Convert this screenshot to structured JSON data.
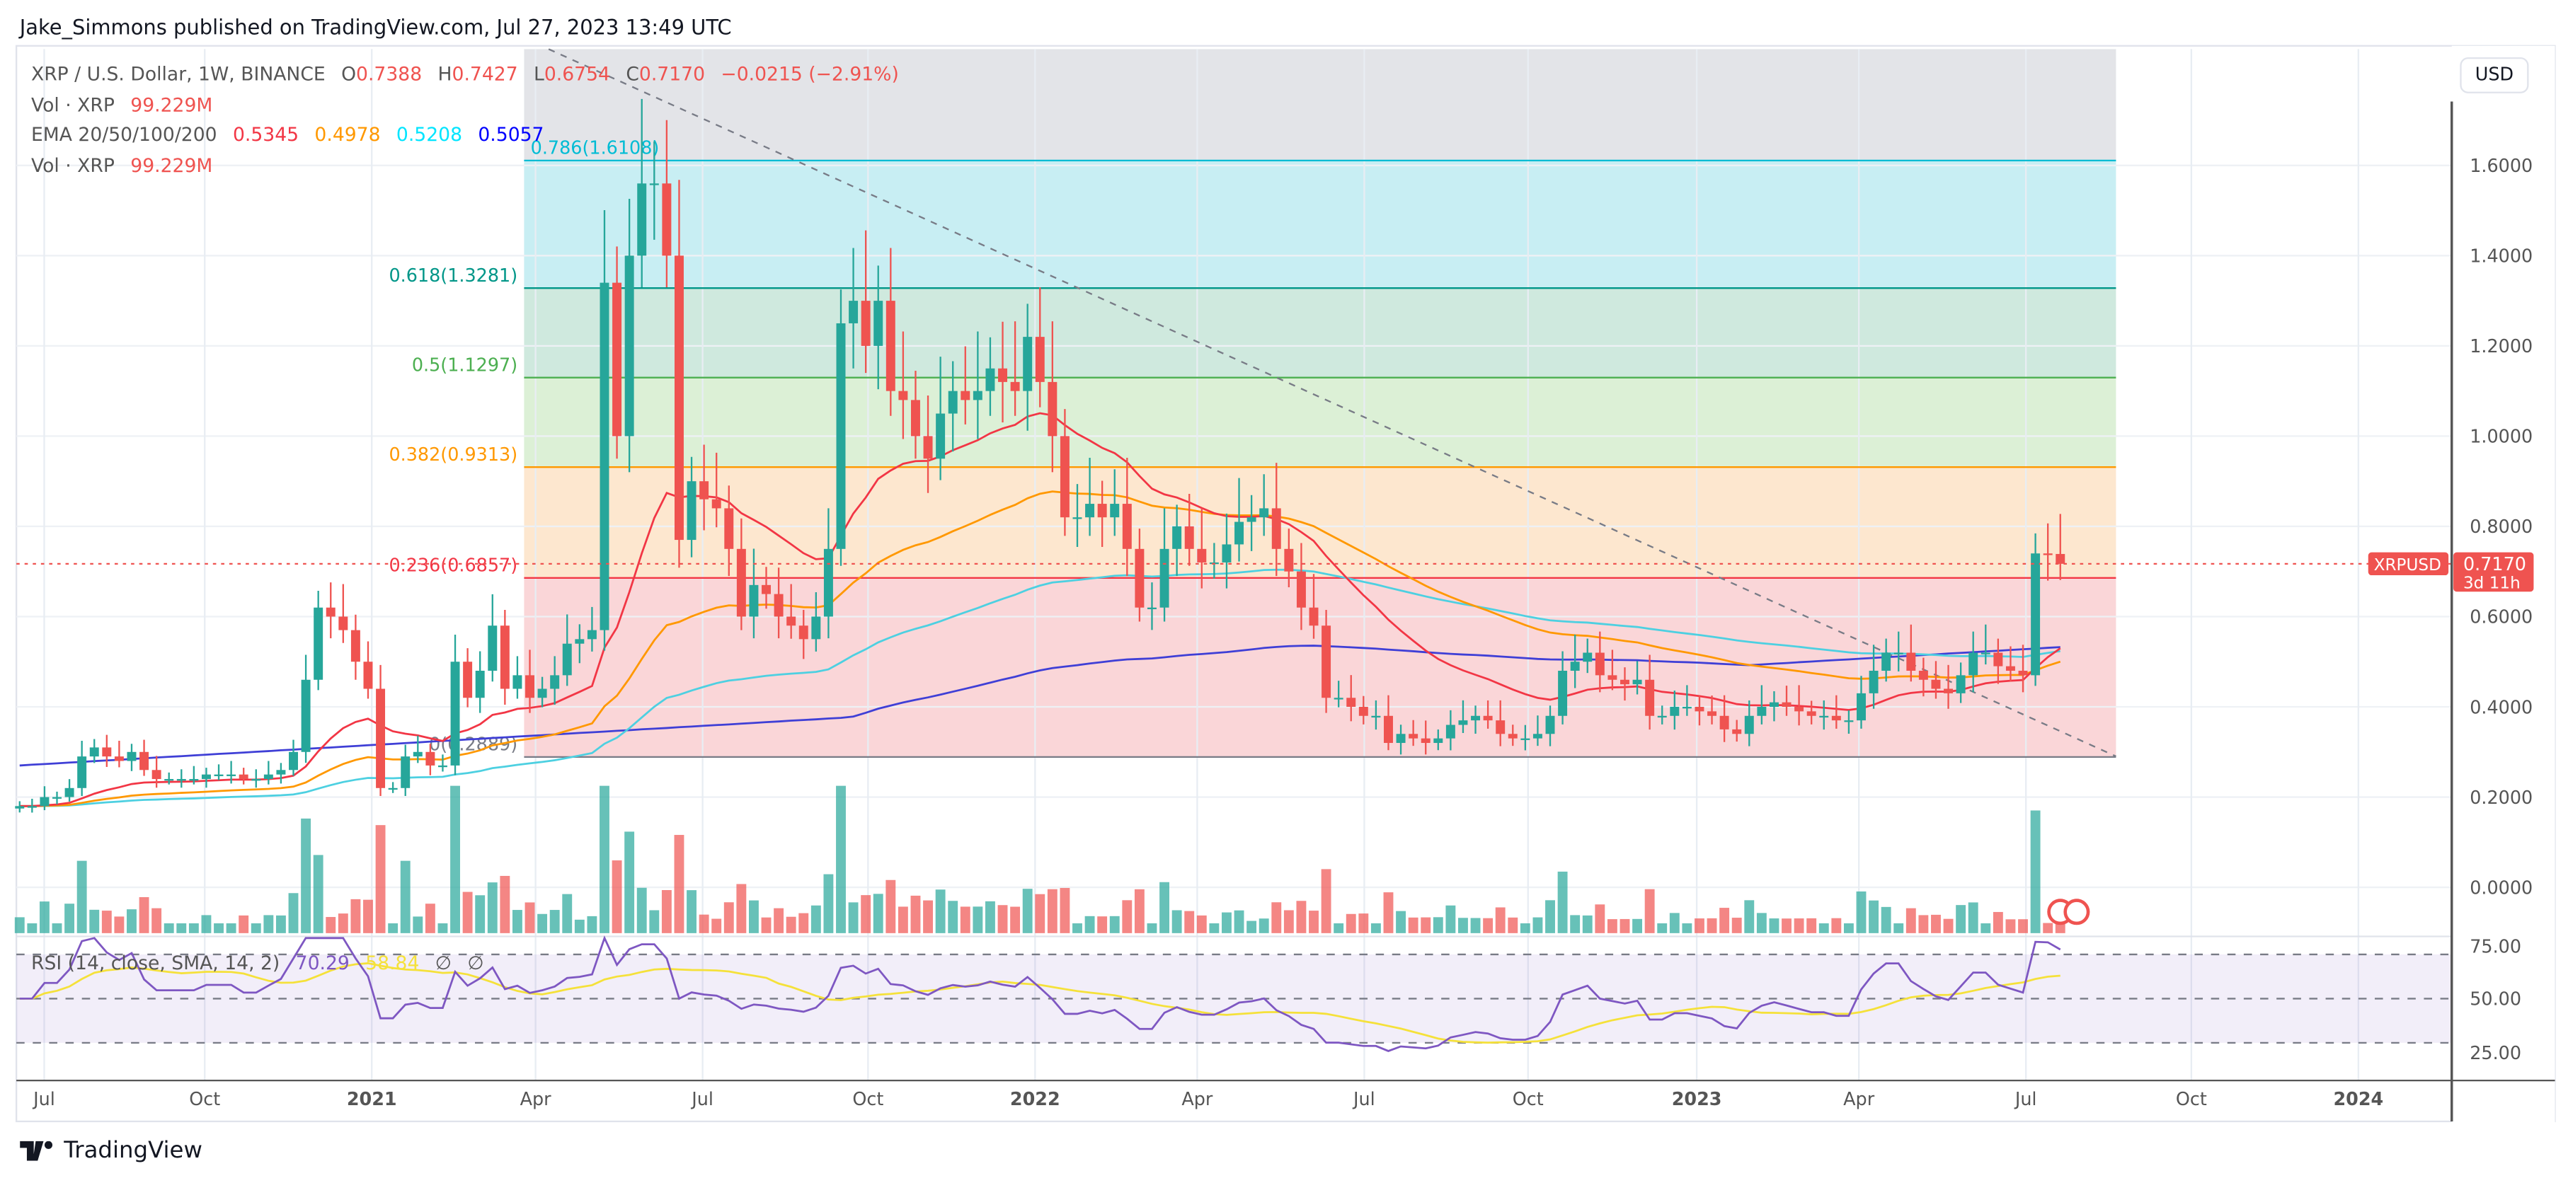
{
  "header": {
    "published": "Jake_Simmons published on TradingView.com, Jul 27, 2023 13:49 UTC"
  },
  "legend": {
    "symbol": "XRP / U.S. Dollar, 1W, BINANCE",
    "o_label": "O",
    "o": "0.7388",
    "h_label": "H",
    "h": "0.7427",
    "l_label": "L",
    "l": "0.6754",
    "c_label": "C",
    "c": "0.7170",
    "change": "−0.0215 (−2.91%)",
    "vol_label": "Vol · XRP",
    "vol": "99.229M",
    "ema_label": "EMA 20/50/100/200",
    "ema20": "0.5345",
    "ema50": "0.4978",
    "ema100": "0.5208",
    "ema200": "0.5057",
    "vol2_label": "Vol · XRP",
    "vol2": "99.229M",
    "rsi_label": "RSI (14, close, SMA, 14, 2)",
    "rsi": "70.29",
    "rsi_sma": "58.84",
    "rsi_n1": "∅",
    "rsi_n2": "∅"
  },
  "price_scale": {
    "currency": "USD",
    "symbol_tag": "XRPUSD",
    "last_price": "0.7170",
    "countdown": "3d 11h"
  },
  "colors": {
    "up": "#26a69a",
    "down": "#ef5350",
    "ema20": "#f23645",
    "ema50": "#ff9800",
    "ema100": "#4dd0e1",
    "ema200": "#3f3fd6",
    "rsi": "#7e57c2",
    "rsi_sma": "#f5e13a"
  },
  "brand": "TradingView",
  "chart_data": {
    "type": "candlestick",
    "interval": "1W",
    "start_week": "2020-06-22",
    "closes": [
      0.18,
      0.18,
      0.2,
      0.2,
      0.22,
      0.29,
      0.31,
      0.29,
      0.28,
      0.3,
      0.26,
      0.24,
      0.24,
      0.24,
      0.24,
      0.25,
      0.25,
      0.25,
      0.24,
      0.24,
      0.25,
      0.26,
      0.3,
      0.46,
      0.62,
      0.6,
      0.57,
      0.5,
      0.44,
      0.22,
      0.22,
      0.29,
      0.3,
      0.27,
      0.27,
      0.5,
      0.42,
      0.48,
      0.58,
      0.44,
      0.47,
      0.42,
      0.44,
      0.47,
      0.54,
      0.55,
      0.57,
      1.34,
      1.0,
      1.4,
      1.56,
      1.56,
      1.4,
      0.77,
      0.9,
      0.86,
      0.84,
      0.75,
      0.6,
      0.67,
      0.65,
      0.6,
      0.58,
      0.55,
      0.6,
      0.75,
      1.25,
      1.3,
      1.2,
      1.3,
      1.1,
      1.08,
      1.0,
      0.95,
      1.05,
      1.1,
      1.08,
      1.1,
      1.15,
      1.12,
      1.1,
      1.22,
      1.12,
      1.0,
      0.82,
      0.82,
      0.85,
      0.82,
      0.85,
      0.75,
      0.62,
      0.62,
      0.75,
      0.8,
      0.75,
      0.72,
      0.72,
      0.76,
      0.81,
      0.82,
      0.84,
      0.75,
      0.7,
      0.62,
      0.58,
      0.42,
      0.42,
      0.4,
      0.38,
      0.38,
      0.32,
      0.34,
      0.33,
      0.32,
      0.33,
      0.36,
      0.37,
      0.38,
      0.37,
      0.34,
      0.33,
      0.33,
      0.34,
      0.38,
      0.48,
      0.5,
      0.52,
      0.47,
      0.46,
      0.45,
      0.46,
      0.38,
      0.38,
      0.4,
      0.4,
      0.39,
      0.38,
      0.35,
      0.34,
      0.38,
      0.4,
      0.41,
      0.4,
      0.39,
      0.38,
      0.38,
      0.37,
      0.37,
      0.43,
      0.48,
      0.52,
      0.52,
      0.48,
      0.46,
      0.44,
      0.43,
      0.47,
      0.52,
      0.52,
      0.49,
      0.48,
      0.47,
      0.74,
      0.7388,
      0.717
    ],
    "y_ticks": [
      "1.6000",
      "1.4000",
      "1.2000",
      "1.0000",
      "0.8000",
      "0.6000",
      "0.4000",
      "0.2000",
      "0.0000"
    ],
    "rsi_ticks": [
      "75.00",
      "50.00",
      "25.00"
    ],
    "x_ticks": [
      {
        "label": "Jul",
        "bold": false
      },
      {
        "label": "Oct",
        "bold": false
      },
      {
        "label": "2021",
        "bold": true
      },
      {
        "label": "Apr",
        "bold": false
      },
      {
        "label": "Jul",
        "bold": false
      },
      {
        "label": "Oct",
        "bold": false
      },
      {
        "label": "2022",
        "bold": true
      },
      {
        "label": "Apr",
        "bold": false
      },
      {
        "label": "Jul",
        "bold": false
      },
      {
        "label": "Oct",
        "bold": false
      },
      {
        "label": "2023",
        "bold": true
      },
      {
        "label": "Apr",
        "bold": false
      },
      {
        "label": "Jul",
        "bold": false
      },
      {
        "label": "Oct",
        "bold": false
      },
      {
        "label": "2024",
        "bold": true
      }
    ],
    "fib_levels": [
      {
        "ratio": 1,
        "price": 1.92,
        "label": "",
        "fill": "#e3e4e8",
        "line": "#9598a1"
      },
      {
        "ratio": 0.786,
        "price": 1.6108,
        "label": "0.786(1.6108)",
        "fill": "#c8eef3",
        "line": "#00bcd4"
      },
      {
        "ratio": 0.618,
        "price": 1.3281,
        "label": "0.618(1.3281)",
        "fill": "#cfe9de",
        "line": "#009688"
      },
      {
        "ratio": 0.5,
        "price": 1.1297,
        "label": "0.5(1.1297)",
        "fill": "#dcf0d6",
        "line": "#4caf50"
      },
      {
        "ratio": 0.382,
        "price": 0.9313,
        "label": "0.382(0.9313)",
        "fill": "#fde7cf",
        "line": "#ff9800"
      },
      {
        "ratio": 0.236,
        "price": 0.6857,
        "label": "0.236(0.6857)",
        "fill": "#fad6d8",
        "line": "#f23645"
      },
      {
        "ratio": 0,
        "price": 0.2889,
        "label": "0(0.2889)",
        "fill": "",
        "line": "#787b86"
      }
    ],
    "rsi_bands": [
      70,
      50,
      30
    ]
  }
}
